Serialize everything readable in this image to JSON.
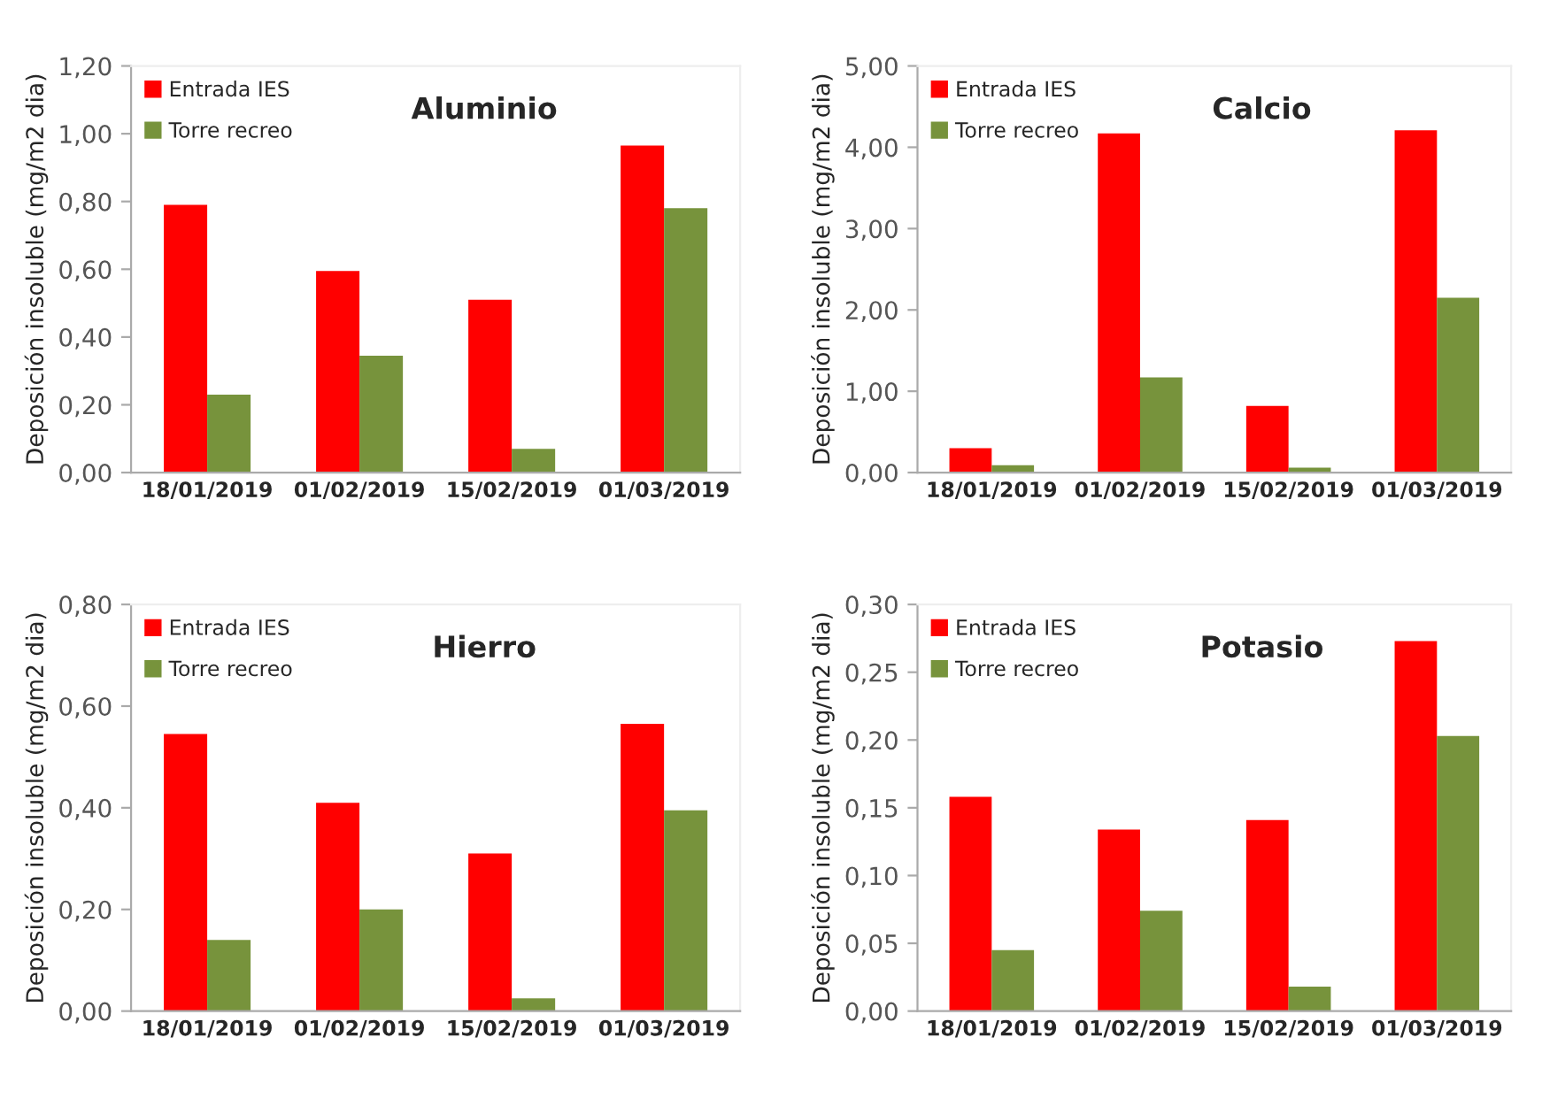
{
  "chart_data": [
    {
      "type": "bar",
      "title": "Aluminio",
      "ylabel": "Deposición insoluble (mg/m2 dia)",
      "categories": [
        "18/01/2019",
        "01/02/2019",
        "15/02/2019",
        "01/03/2019"
      ],
      "series": [
        {
          "name": "Entrada IES",
          "color": "#ff0000",
          "values": [
            0.79,
            0.595,
            0.51,
            0.965
          ]
        },
        {
          "name": "Torre recreo",
          "color": "#77933c",
          "values": [
            0.23,
            0.345,
            0.07,
            0.78
          ]
        }
      ],
      "ylim": [
        0,
        1.2
      ],
      "yticks": [
        {
          "value": 0,
          "label": "0,00"
        },
        {
          "value": 0.2,
          "label": "0,20"
        },
        {
          "value": 0.4,
          "label": "0,40"
        },
        {
          "value": 0.6,
          "label": "0,60"
        },
        {
          "value": 0.8,
          "label": "0,80"
        },
        {
          "value": 1.0,
          "label": "1,00"
        },
        {
          "value": 1.2,
          "label": "1,20"
        }
      ],
      "legend": "top left"
    },
    {
      "type": "bar",
      "title": "Calcio",
      "ylabel": "Deposición insoluble (mg/m2 dia)",
      "categories": [
        "18/01/2019",
        "01/02/2019",
        "15/02/2019",
        "01/03/2019"
      ],
      "series": [
        {
          "name": "Entrada IES",
          "color": "#ff0000",
          "values": [
            0.3,
            4.17,
            0.82,
            4.21
          ]
        },
        {
          "name": "Torre recreo",
          "color": "#77933c",
          "values": [
            0.09,
            1.17,
            0.06,
            2.15
          ]
        }
      ],
      "ylim": [
        0,
        5
      ],
      "yticks": [
        {
          "value": 0,
          "label": "0,00"
        },
        {
          "value": 1,
          "label": "1,00"
        },
        {
          "value": 2,
          "label": "2,00"
        },
        {
          "value": 3,
          "label": "3,00"
        },
        {
          "value": 4,
          "label": "4,00"
        },
        {
          "value": 5,
          "label": "5,00"
        }
      ],
      "legend": "top left"
    },
    {
      "type": "bar",
      "title": "Hierro",
      "ylabel": "Deposición insoluble (mg/m2 dia)",
      "categories": [
        "18/01/2019",
        "01/02/2019",
        "15/02/2019",
        "01/03/2019"
      ],
      "series": [
        {
          "name": "Entrada IES",
          "color": "#ff0000",
          "values": [
            0.545,
            0.41,
            0.31,
            0.565
          ]
        },
        {
          "name": "Torre recreo",
          "color": "#77933c",
          "values": [
            0.14,
            0.2,
            0.025,
            0.395
          ]
        }
      ],
      "ylim": [
        0,
        0.8
      ],
      "yticks": [
        {
          "value": 0,
          "label": "0,00"
        },
        {
          "value": 0.2,
          "label": "0,20"
        },
        {
          "value": 0.4,
          "label": "0,40"
        },
        {
          "value": 0.6,
          "label": "0,60"
        },
        {
          "value": 0.8,
          "label": "0,80"
        }
      ],
      "legend": "top left"
    },
    {
      "type": "bar",
      "title": "Potasio",
      "ylabel": "Deposición insoluble (mg/m2 dia)",
      "categories": [
        "18/01/2019",
        "01/02/2019",
        "15/02/2019",
        "01/03/2019"
      ],
      "series": [
        {
          "name": "Entrada IES",
          "color": "#ff0000",
          "values": [
            0.158,
            0.134,
            0.141,
            0.273
          ]
        },
        {
          "name": "Torre recreo",
          "color": "#77933c",
          "values": [
            0.045,
            0.074,
            0.018,
            0.203
          ]
        }
      ],
      "ylim": [
        0,
        0.3
      ],
      "yticks": [
        {
          "value": 0,
          "label": "0,00"
        },
        {
          "value": 0.05,
          "label": "0,05"
        },
        {
          "value": 0.1,
          "label": "0,10"
        },
        {
          "value": 0.15,
          "label": "0,15"
        },
        {
          "value": 0.2,
          "label": "0,20"
        },
        {
          "value": 0.25,
          "label": "0,25"
        },
        {
          "value": 0.3,
          "label": "0,30"
        }
      ],
      "legend": "top left"
    }
  ]
}
